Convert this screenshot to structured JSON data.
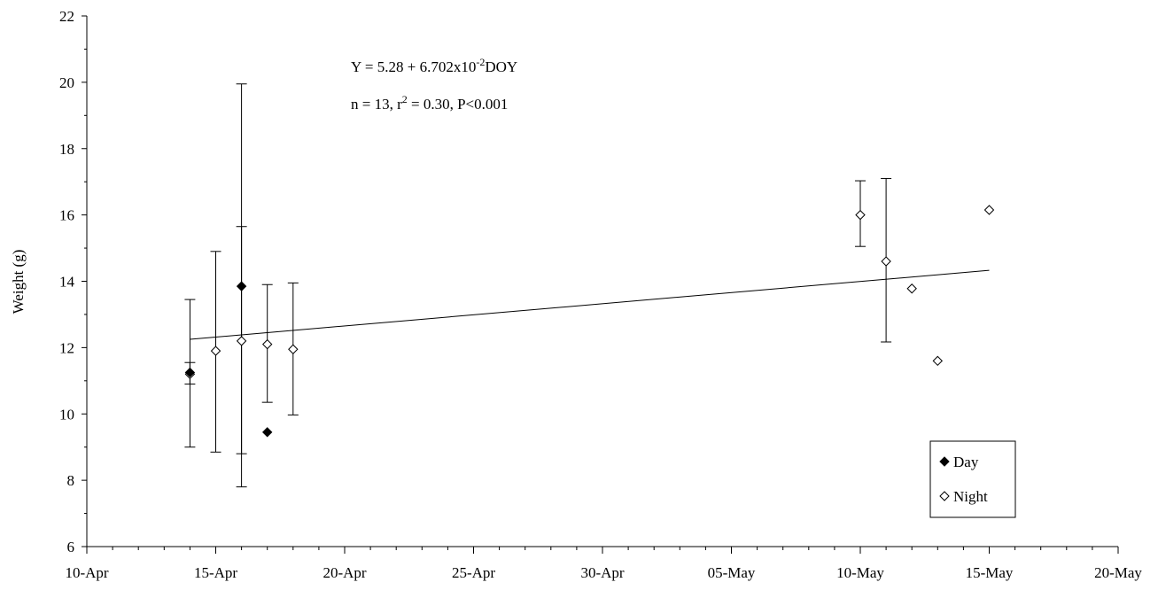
{
  "chart_data": {
    "type": "scatter",
    "title": "",
    "xlabel": "",
    "ylabel": "Weight (g)",
    "x_ticks": [
      "10-Apr",
      "15-Apr",
      "20-Apr",
      "25-Apr",
      "30-Apr",
      "05-May",
      "10-May",
      "15-May",
      "20-May"
    ],
    "xlim": [
      "2000-04-10",
      "2000-05-20"
    ],
    "ylim": [
      6,
      22
    ],
    "y_ticks": [
      6,
      8,
      10,
      12,
      14,
      16,
      18,
      20,
      22
    ],
    "grid": false,
    "legend_position": "bottom-right",
    "series": [
      {
        "name": "Day",
        "marker": "filled-diamond",
        "points": [
          {
            "x": "2000-04-14",
            "y": 11.25,
            "err_low": 10.9,
            "err_high": 11.55
          },
          {
            "x": "2000-04-16",
            "y": 13.85,
            "err_low": 7.8,
            "err_high": 19.95
          },
          {
            "x": "2000-04-17",
            "y": 9.45
          }
        ]
      },
      {
        "name": "Night",
        "marker": "open-diamond",
        "points": [
          {
            "x": "2000-04-14",
            "y": 11.2,
            "err_low": 9.0,
            "err_high": 13.45
          },
          {
            "x": "2000-04-15",
            "y": 11.9,
            "err_low": 8.85,
            "err_high": 14.9
          },
          {
            "x": "2000-04-16",
            "y": 12.2,
            "err_low": 8.8,
            "err_high": 15.65
          },
          {
            "x": "2000-04-17",
            "y": 12.1,
            "err_low": 10.35,
            "err_high": 13.9
          },
          {
            "x": "2000-04-18",
            "y": 11.95,
            "err_low": 9.97,
            "err_high": 13.95
          },
          {
            "x": "2000-05-10",
            "y": 16.0,
            "err_low": 15.05,
            "err_high": 17.03
          },
          {
            "x": "2000-05-11",
            "y": 14.6,
            "err_low": 12.17,
            "err_high": 17.1
          },
          {
            "x": "2000-05-12",
            "y": 13.78
          },
          {
            "x": "2000-05-13",
            "y": 11.6
          },
          {
            "x": "2000-05-15",
            "y": 16.15
          }
        ]
      }
    ],
    "regression_line": {
      "x_start": "2000-04-14",
      "y_start": 12.25,
      "x_end": "2000-05-15",
      "y_end": 14.33
    },
    "annotations": {
      "equation_prefix": "Y = 5.28 + 6.702x10",
      "equation_exponent": "-2",
      "equation_suffix": "DOY",
      "stats_prefix": "n = 13, r",
      "stats_exponent": "2",
      "stats_suffix": " = 0.30, P<0.001"
    }
  }
}
